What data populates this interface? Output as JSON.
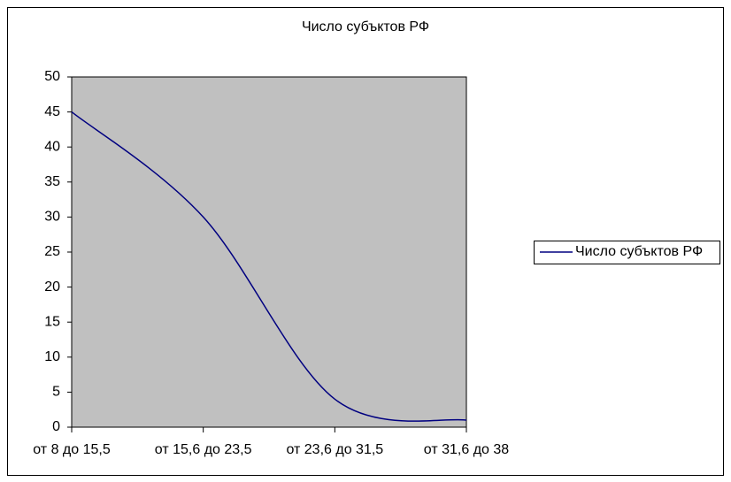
{
  "chart_data": {
    "type": "line",
    "title": "Число субъктов РФ",
    "categories": [
      "от 8 до 15,5",
      "от 15,6 до 23,5",
      "от 23,6 до 31,5",
      "от 31,6 до 38"
    ],
    "series": [
      {
        "name": "Число субъктов РФ",
        "color": "#000080",
        "values": [
          45,
          30,
          4,
          1
        ]
      }
    ],
    "ylim": [
      0,
      50
    ],
    "yticks": [
      0,
      5,
      10,
      15,
      20,
      25,
      30,
      35,
      40,
      45,
      50
    ],
    "smooth": true,
    "plot_background": "#c0c0c0",
    "legend": "right"
  }
}
